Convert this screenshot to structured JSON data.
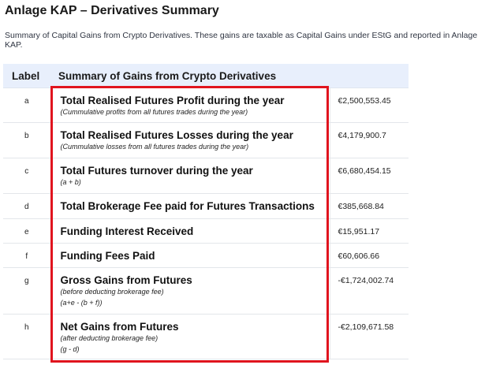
{
  "title": "Anlage KAP – Derivatives Summary",
  "subtitle": "Summary of Capital Gains from Crypto Derivatives. These gains are taxable as Capital Gains under EStG and reported in Anlage KAP.",
  "table": {
    "headers": {
      "label": "Label",
      "description": "Summary of Gains from Crypto Derivatives"
    },
    "rows": [
      {
        "label": "a",
        "main": "Total Realised Futures Profit during the year",
        "note1": "(Cummulative profits from all futures trades during the year)",
        "note2": "",
        "amount": "€2,500,553.45"
      },
      {
        "label": "b",
        "main": "Total Realised Futures Losses during the year",
        "note1": "(Cummulative losses from all futures trades during the year)",
        "note2": "",
        "amount": "€4,179,900.7"
      },
      {
        "label": "c",
        "main": "Total Futures turnover during the year",
        "note1": "(a + b)",
        "note2": "",
        "amount": "€6,680,454.15"
      },
      {
        "label": "d",
        "main": "Total Brokerage Fee paid for Futures Transactions",
        "note1": "",
        "note2": "",
        "amount": "€385,668.84"
      },
      {
        "label": "e",
        "main": "Funding Interest Received",
        "note1": "",
        "note2": "",
        "amount": "€15,951.17"
      },
      {
        "label": "f",
        "main": "Funding Fees Paid",
        "note1": "",
        "note2": "",
        "amount": "€60,606.66"
      },
      {
        "label": "g",
        "main": "Gross Gains from Futures",
        "note1": "(before deducting brokerage fee)",
        "note2": "(a+e - (b + f))",
        "amount": "-€1,724,002.74"
      },
      {
        "label": "h",
        "main": "Net Gains from Futures",
        "note1": "(after deducting brokerage fee)",
        "note2": "(g - d)",
        "amount": "-€2,109,671.58"
      }
    ]
  },
  "highlight": {
    "color": "#e0141e"
  }
}
